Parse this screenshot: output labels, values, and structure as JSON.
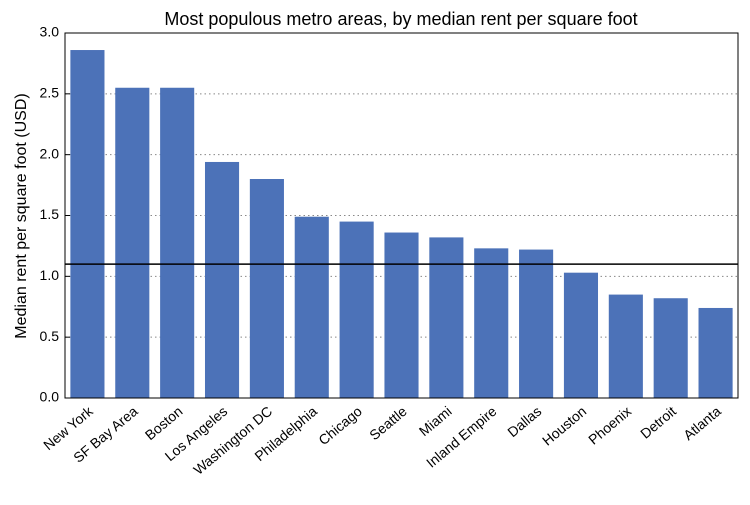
{
  "chart_data": {
    "type": "bar",
    "title": "Most populous metro areas, by median rent per square foot",
    "y_label": "Median rent per square foot (USD)",
    "categories": [
      "New York",
      "SF Bay Area",
      "Boston",
      "Los Angeles",
      "Washington DC",
      "Philadelphia",
      "Chicago",
      "Seattle",
      "Miami",
      "Inland Empire",
      "Dallas",
      "Houston",
      "Phoenix",
      "Detroit",
      "Atlanta"
    ],
    "values": [
      2.86,
      2.55,
      2.55,
      1.94,
      1.8,
      1.49,
      1.45,
      1.36,
      1.32,
      1.23,
      1.22,
      1.03,
      0.85,
      0.82,
      0.74
    ],
    "color": "#4c72b8",
    "ylim": [
      0,
      3
    ],
    "yticks": [
      {
        "value": 0,
        "label": "0.0"
      },
      {
        "value": 0.5,
        "label": "0.5"
      },
      {
        "value": 1,
        "label": "1.0"
      },
      {
        "value": 1.5,
        "label": "1.5"
      },
      {
        "value": 2,
        "label": "2.0"
      },
      {
        "value": 2.5,
        "label": "2.5"
      },
      {
        "value": 3,
        "label": "3.0"
      }
    ],
    "grid": true,
    "reference_line": 1.1
  }
}
